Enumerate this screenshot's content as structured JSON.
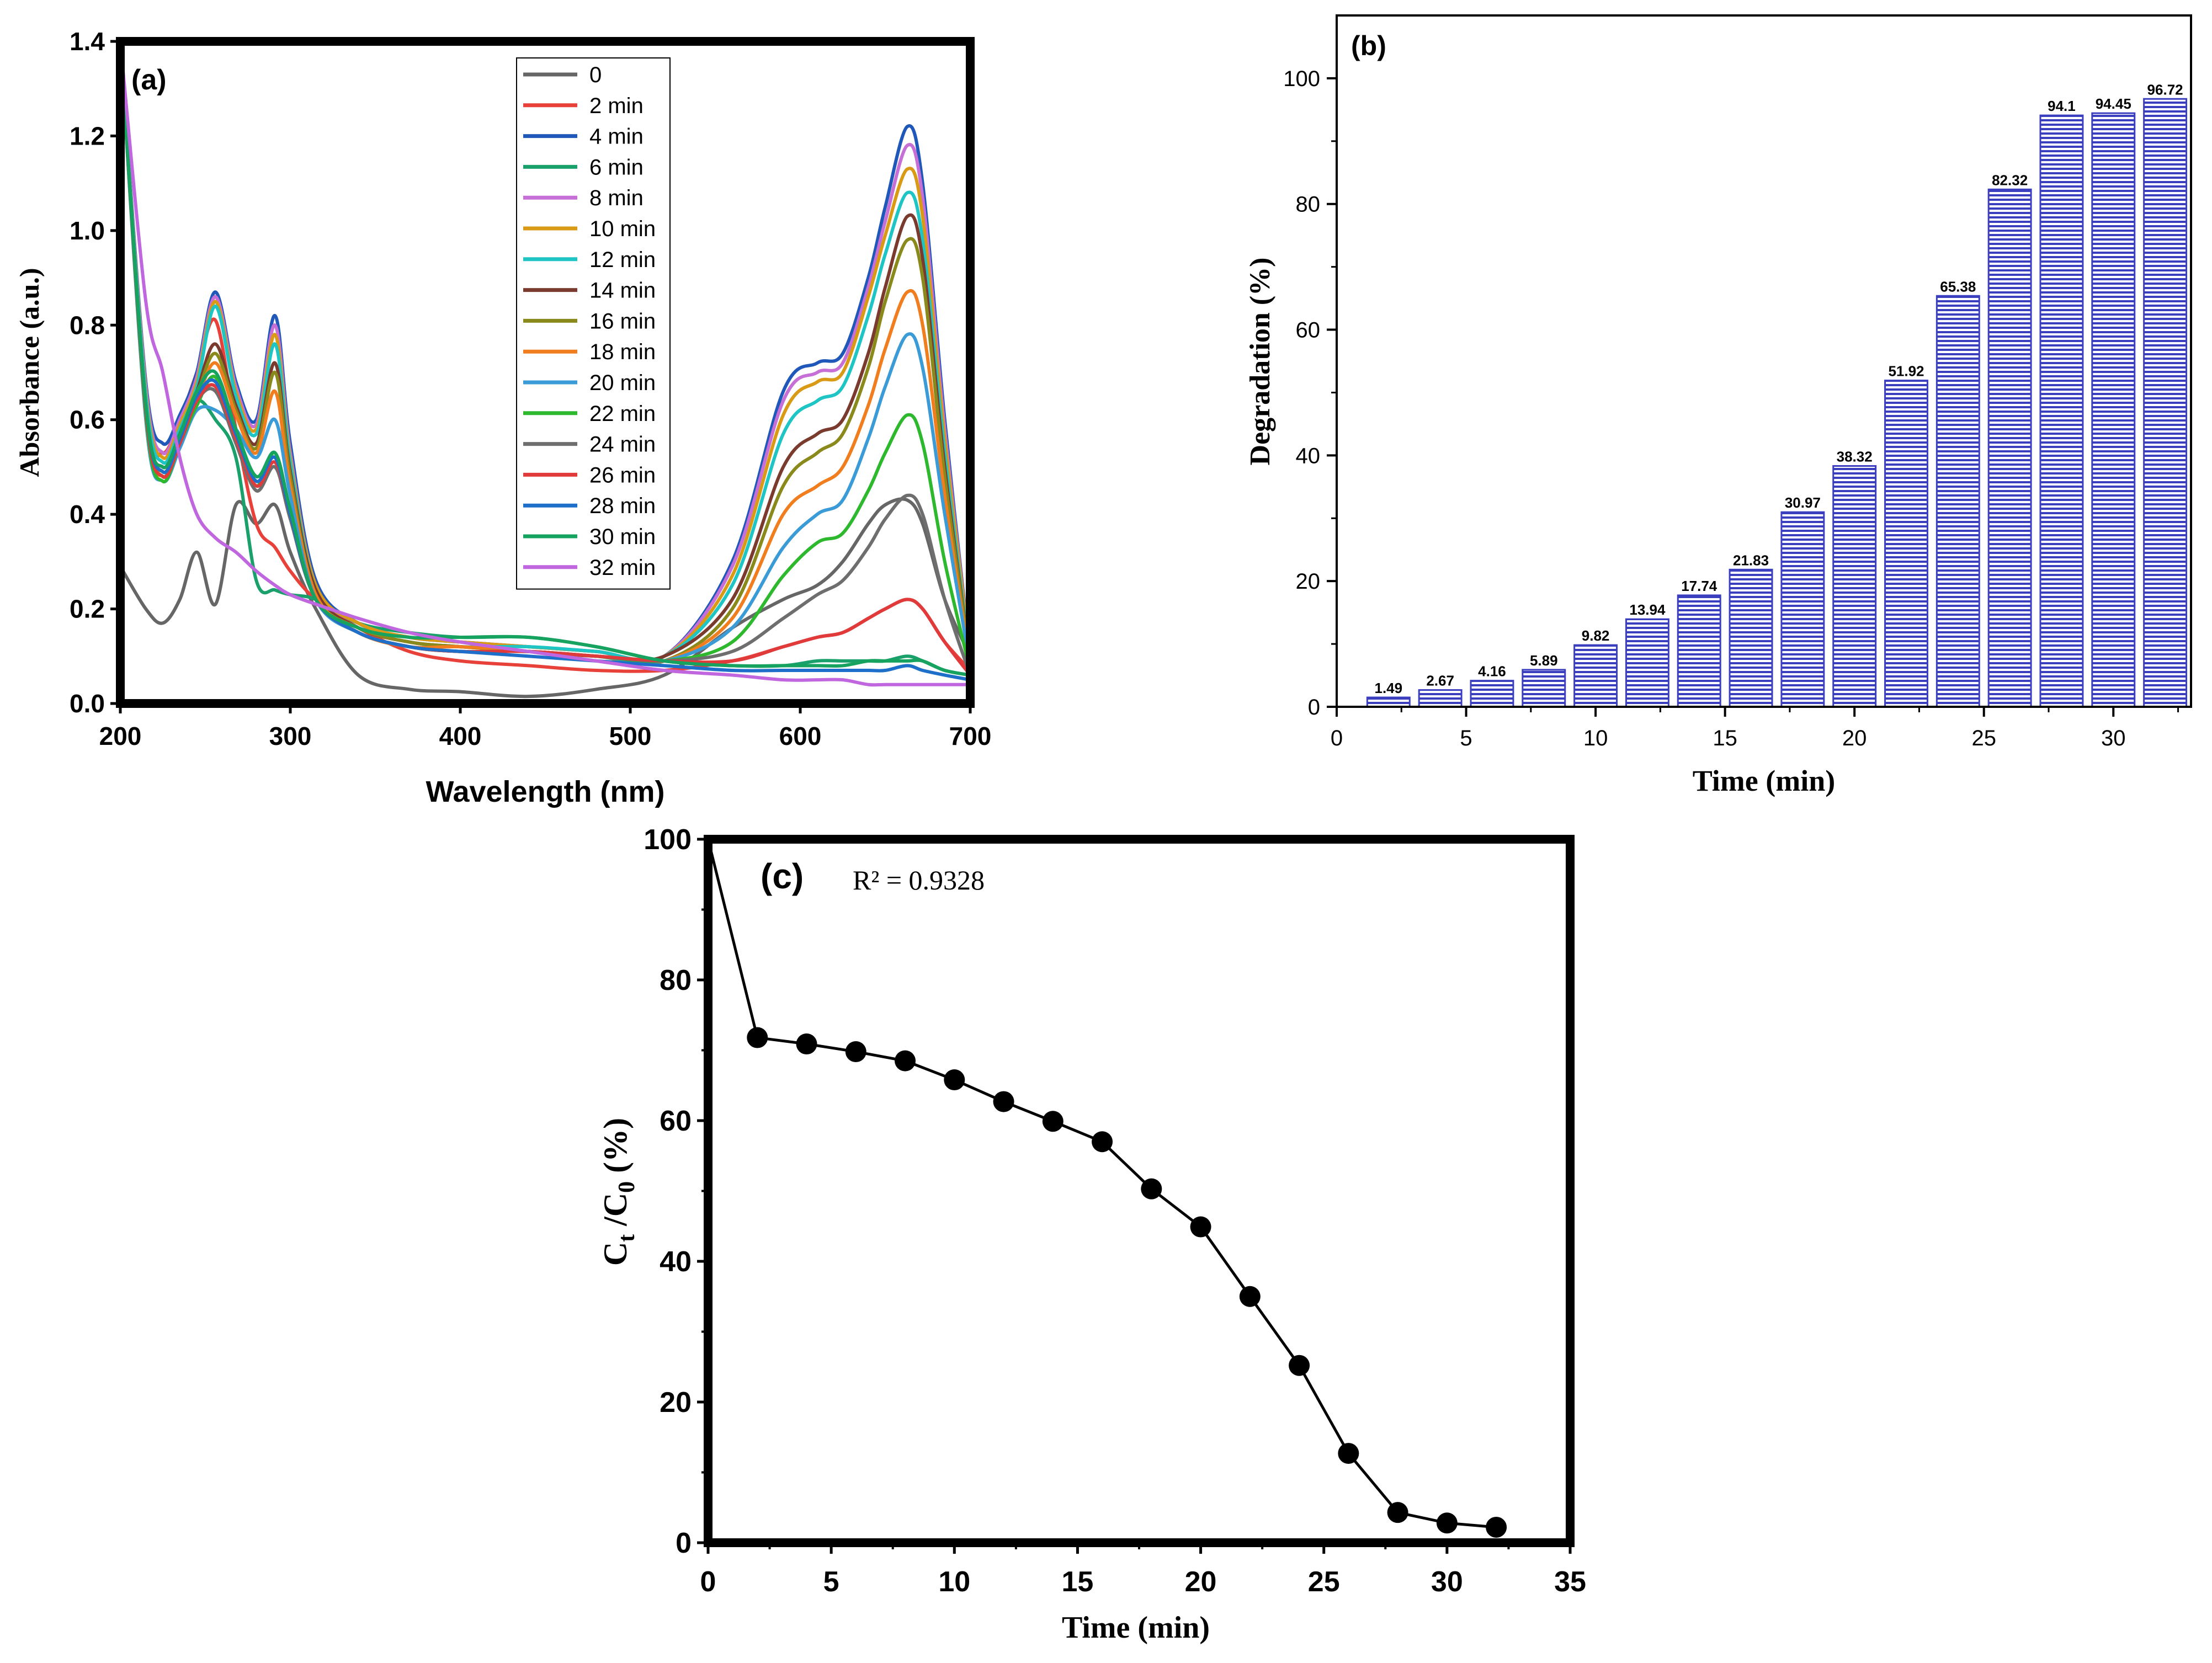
{
  "chart_data": [
    {
      "id": "a",
      "type": "line",
      "panel_label": "(a)",
      "title": "",
      "xlabel": "Wavelength (nm)",
      "ylabel": "Absorbance (a.u.)",
      "xlim": [
        200,
        700
      ],
      "ylim": [
        0,
        1.4
      ],
      "xticks": [
        "200",
        "300",
        "400",
        "500",
        "600",
        "700"
      ],
      "yticks": [
        "0.0",
        "0.2",
        "0.4",
        "0.6",
        "0.8",
        "1.0",
        "1.2",
        "1.4"
      ],
      "legend_position": "top-center",
      "x": [
        200,
        215,
        225,
        235,
        245,
        256,
        268,
        280,
        291,
        300,
        315,
        340,
        370,
        400,
        440,
        480,
        520,
        560,
        590,
        610,
        625,
        640,
        650,
        663,
        672,
        685,
        700
      ],
      "series": [
        {
          "name": "0",
          "color": "#666666",
          "values": [
            0.29,
            0.2,
            0.17,
            0.22,
            0.32,
            0.21,
            0.42,
            0.38,
            0.42,
            0.32,
            0.2,
            0.06,
            0.03,
            0.025,
            0.015,
            0.03,
            0.06,
            0.16,
            0.22,
            0.25,
            0.3,
            0.38,
            0.42,
            0.43,
            0.38,
            0.22,
            0.1
          ]
        },
        {
          "name": "2 min",
          "color": "#e8413a",
          "values": [
            1.4,
            0.62,
            0.53,
            0.6,
            0.7,
            0.81,
            0.58,
            0.38,
            0.33,
            0.28,
            0.22,
            0.16,
            0.11,
            0.09,
            0.08,
            0.07,
            0.07,
            0.09,
            0.12,
            0.14,
            0.15,
            0.18,
            0.2,
            0.22,
            0.2,
            0.13,
            0.07
          ]
        },
        {
          "name": "4 min",
          "color": "#1f58b8",
          "values": [
            1.4,
            0.68,
            0.55,
            0.61,
            0.7,
            0.87,
            0.68,
            0.6,
            0.82,
            0.55,
            0.26,
            0.17,
            0.14,
            0.13,
            0.12,
            0.11,
            0.1,
            0.3,
            0.66,
            0.72,
            0.74,
            0.9,
            1.05,
            1.22,
            1.1,
            0.6,
            0.1
          ]
        },
        {
          "name": "6 min",
          "color": "#1aa06a",
          "values": [
            1.4,
            0.62,
            0.48,
            0.56,
            0.64,
            0.6,
            0.52,
            0.26,
            0.24,
            0.23,
            0.22,
            0.17,
            0.15,
            0.14,
            0.14,
            0.12,
            0.09,
            0.08,
            0.08,
            0.09,
            0.09,
            0.09,
            0.09,
            0.1,
            0.09,
            0.07,
            0.06
          ]
        },
        {
          "name": "8 min",
          "color": "#c66fd6",
          "values": [
            1.4,
            0.67,
            0.53,
            0.6,
            0.69,
            0.86,
            0.67,
            0.59,
            0.8,
            0.53,
            0.25,
            0.17,
            0.14,
            0.13,
            0.12,
            0.11,
            0.1,
            0.29,
            0.64,
            0.7,
            0.72,
            0.88,
            1.02,
            1.18,
            1.07,
            0.58,
            0.1
          ]
        },
        {
          "name": "10 min",
          "color": "#d99a16",
          "values": [
            1.4,
            0.66,
            0.52,
            0.59,
            0.68,
            0.85,
            0.66,
            0.58,
            0.78,
            0.52,
            0.25,
            0.17,
            0.14,
            0.13,
            0.12,
            0.11,
            0.1,
            0.27,
            0.61,
            0.68,
            0.7,
            0.86,
            0.99,
            1.13,
            1.03,
            0.56,
            0.1
          ]
        },
        {
          "name": "12 min",
          "color": "#1fc4c4",
          "values": [
            1.4,
            0.65,
            0.51,
            0.58,
            0.67,
            0.84,
            0.65,
            0.57,
            0.76,
            0.51,
            0.24,
            0.16,
            0.13,
            0.12,
            0.12,
            0.11,
            0.1,
            0.25,
            0.57,
            0.64,
            0.67,
            0.82,
            0.95,
            1.08,
            0.98,
            0.53,
            0.09
          ]
        },
        {
          "name": "14 min",
          "color": "#7a3b2e",
          "values": [
            1.4,
            0.63,
            0.5,
            0.57,
            0.66,
            0.76,
            0.63,
            0.55,
            0.72,
            0.49,
            0.24,
            0.16,
            0.13,
            0.12,
            0.11,
            0.1,
            0.1,
            0.22,
            0.5,
            0.57,
            0.6,
            0.74,
            0.88,
            1.03,
            0.94,
            0.5,
            0.09
          ]
        },
        {
          "name": "16 min",
          "color": "#8a8a1c",
          "values": [
            1.4,
            0.62,
            0.49,
            0.56,
            0.65,
            0.74,
            0.62,
            0.54,
            0.7,
            0.48,
            0.23,
            0.16,
            0.13,
            0.12,
            0.11,
            0.1,
            0.09,
            0.2,
            0.46,
            0.53,
            0.57,
            0.71,
            0.85,
            0.98,
            0.9,
            0.48,
            0.09
          ]
        },
        {
          "name": "18 min",
          "color": "#f07d1e",
          "values": [
            1.4,
            0.61,
            0.48,
            0.55,
            0.64,
            0.72,
            0.61,
            0.53,
            0.66,
            0.46,
            0.23,
            0.15,
            0.12,
            0.12,
            0.11,
            0.1,
            0.09,
            0.18,
            0.4,
            0.46,
            0.5,
            0.63,
            0.75,
            0.87,
            0.8,
            0.44,
            0.08
          ]
        },
        {
          "name": "20 min",
          "color": "#3a9bd6",
          "values": [
            1.4,
            0.6,
            0.47,
            0.54,
            0.62,
            0.62,
            0.58,
            0.52,
            0.6,
            0.44,
            0.22,
            0.15,
            0.12,
            0.11,
            0.11,
            0.1,
            0.09,
            0.16,
            0.33,
            0.4,
            0.43,
            0.56,
            0.67,
            0.78,
            0.71,
            0.4,
            0.08
          ]
        },
        {
          "name": "22 min",
          "color": "#2db82d",
          "values": [
            1.4,
            0.61,
            0.47,
            0.55,
            0.63,
            0.69,
            0.56,
            0.46,
            0.53,
            0.4,
            0.22,
            0.15,
            0.12,
            0.11,
            0.11,
            0.1,
            0.09,
            0.13,
            0.27,
            0.34,
            0.36,
            0.45,
            0.53,
            0.61,
            0.55,
            0.3,
            0.07
          ]
        },
        {
          "name": "24 min",
          "color": "#6e6e6e",
          "values": [
            1.4,
            0.62,
            0.48,
            0.55,
            0.64,
            0.66,
            0.55,
            0.45,
            0.5,
            0.39,
            0.22,
            0.15,
            0.12,
            0.11,
            0.11,
            0.1,
            0.09,
            0.11,
            0.18,
            0.23,
            0.26,
            0.33,
            0.39,
            0.44,
            0.4,
            0.22,
            0.06
          ]
        },
        {
          "name": "26 min",
          "color": "#e03a3a",
          "values": [
            1.4,
            0.62,
            0.48,
            0.55,
            0.64,
            0.67,
            0.56,
            0.46,
            0.51,
            0.4,
            0.22,
            0.15,
            0.12,
            0.11,
            0.11,
            0.1,
            0.09,
            0.09,
            0.12,
            0.14,
            0.15,
            0.18,
            0.2,
            0.22,
            0.2,
            0.13,
            0.06
          ]
        },
        {
          "name": "28 min",
          "color": "#1d6fc9",
          "values": [
            1.4,
            0.63,
            0.49,
            0.56,
            0.65,
            0.68,
            0.57,
            0.47,
            0.52,
            0.4,
            0.22,
            0.15,
            0.12,
            0.11,
            0.1,
            0.09,
            0.08,
            0.07,
            0.07,
            0.07,
            0.07,
            0.07,
            0.07,
            0.08,
            0.07,
            0.06,
            0.05
          ]
        },
        {
          "name": "30 min",
          "color": "#16a35f",
          "values": [
            1.4,
            0.63,
            0.5,
            0.57,
            0.66,
            0.7,
            0.58,
            0.48,
            0.53,
            0.41,
            0.22,
            0.16,
            0.14,
            0.14,
            0.14,
            0.12,
            0.09,
            0.08,
            0.08,
            0.08,
            0.08,
            0.09,
            0.09,
            0.09,
            0.09,
            0.07,
            0.06
          ]
        },
        {
          "name": "32 min",
          "color": "#c067e0",
          "values": [
            1.4,
            0.85,
            0.7,
            0.52,
            0.4,
            0.35,
            0.32,
            0.28,
            0.25,
            0.23,
            0.21,
            0.18,
            0.15,
            0.13,
            0.11,
            0.09,
            0.07,
            0.06,
            0.05,
            0.05,
            0.05,
            0.04,
            0.04,
            0.04,
            0.04,
            0.04,
            0.04
          ]
        }
      ]
    },
    {
      "id": "b",
      "type": "bar",
      "panel_label": "(b)",
      "title": "",
      "xlabel": "Time (min)",
      "ylabel": "Degradation (%)",
      "xlim": [
        0,
        33
      ],
      "ylim": [
        0,
        110
      ],
      "xticks": [
        "0",
        "5",
        "10",
        "15",
        "20",
        "25",
        "30"
      ],
      "yticks": [
        "0",
        "20",
        "40",
        "60",
        "80",
        "100"
      ],
      "bar_color": "#3b3fbf",
      "categories": [
        2,
        4,
        6,
        8,
        10,
        12,
        14,
        16,
        18,
        20,
        22,
        24,
        26,
        28,
        30,
        32
      ],
      "values": [
        1.49,
        2.67,
        4.16,
        5.89,
        9.82,
        13.94,
        17.74,
        21.83,
        30.97,
        38.32,
        51.92,
        65.38,
        82.32,
        94.1,
        94.45,
        96.72
      ],
      "value_labels": [
        "1.49",
        "2.67",
        "4.16",
        "5.89",
        "9.82",
        "13.94",
        "17.74",
        "21.83",
        "30.97",
        "38.32",
        "51.92",
        "65.38",
        "82.32",
        "94.1",
        "94.45",
        "96.72"
      ]
    },
    {
      "id": "c",
      "type": "line",
      "panel_label": "(c)",
      "title": "",
      "annotation": "R² = 0.9328",
      "xlabel": "Time (min)",
      "ylabel_main": "C",
      "ylabel_sub1": "t",
      "ylabel_mid": " /C",
      "ylabel_sub2": "0",
      "ylabel_end": " (%)",
      "xlim": [
        0,
        35
      ],
      "ylim": [
        0,
        100
      ],
      "xticks": [
        "0",
        "5",
        "10",
        "15",
        "20",
        "25",
        "30",
        "35"
      ],
      "yticks": [
        "0",
        "20",
        "40",
        "60",
        "80",
        "100"
      ],
      "x": [
        0,
        2,
        4,
        6,
        8,
        10,
        12,
        14,
        16,
        18,
        20,
        22,
        24,
        26,
        28,
        30,
        32
      ],
      "values": [
        100,
        71.8,
        70.9,
        69.8,
        68.5,
        65.8,
        62.7,
        59.9,
        57.0,
        50.3,
        44.9,
        35.0,
        25.2,
        12.7,
        4.3,
        2.8,
        2.2
      ]
    }
  ]
}
